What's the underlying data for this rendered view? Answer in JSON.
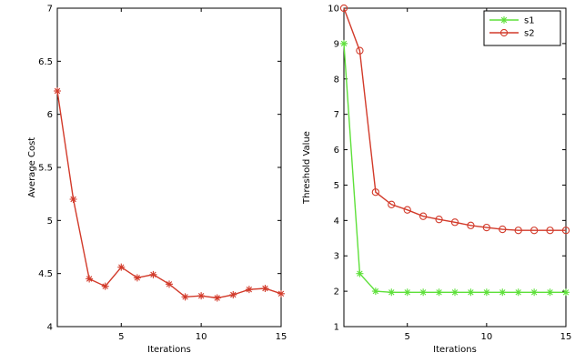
{
  "chart_data": [
    {
      "type": "line",
      "xlabel": "Iterations",
      "ylabel": "Average Cost",
      "xlim": [
        1,
        15
      ],
      "ylim": [
        4,
        7
      ],
      "xticks": [
        5,
        10,
        15
      ],
      "yticks": [
        4,
        4.5,
        5,
        5.5,
        6,
        6.5,
        7
      ],
      "ytick_labels": [
        "4",
        "4.5",
        "5",
        "5.5",
        "6",
        "6.5",
        "7"
      ],
      "grid": false,
      "series": [
        {
          "color": "#d23a2a",
          "marker": "star",
          "x": [
            1,
            2,
            3,
            4,
            5,
            6,
            7,
            8,
            9,
            10,
            11,
            12,
            13,
            14,
            15
          ],
          "y": [
            6.22,
            5.2,
            4.45,
            4.38,
            4.56,
            4.46,
            4.49,
            4.4,
            4.28,
            4.29,
            4.27,
            4.3,
            4.35,
            4.36,
            4.31
          ]
        }
      ]
    },
    {
      "type": "line",
      "xlabel": "Iterations",
      "ylabel": "Threshold Value",
      "xlim": [
        1,
        15
      ],
      "ylim": [
        1,
        10
      ],
      "xticks": [
        5,
        10,
        15
      ],
      "yticks": [
        1,
        2,
        3,
        4,
        5,
        6,
        7,
        8,
        9,
        10
      ],
      "ytick_labels": [
        "1",
        "2",
        "3",
        "4",
        "5",
        "6",
        "7",
        "8",
        "9",
        "10"
      ],
      "grid": false,
      "legend_position": "top-right",
      "series": [
        {
          "name": "s1",
          "color": "#5ee03a",
          "marker": "star",
          "x": [
            1,
            2,
            3,
            4,
            5,
            6,
            7,
            8,
            9,
            10,
            11,
            12,
            13,
            14,
            15
          ],
          "y": [
            9.0,
            2.5,
            2.0,
            1.97,
            1.97,
            1.97,
            1.97,
            1.97,
            1.97,
            1.97,
            1.97,
            1.97,
            1.97,
            1.97,
            1.97
          ]
        },
        {
          "name": "s2",
          "color": "#d23a2a",
          "marker": "circle",
          "x": [
            1,
            2,
            3,
            4,
            5,
            6,
            7,
            8,
            9,
            10,
            11,
            12,
            13,
            14,
            15
          ],
          "y": [
            10.0,
            8.8,
            4.8,
            4.45,
            4.3,
            4.12,
            4.03,
            3.95,
            3.86,
            3.8,
            3.75,
            3.72,
            3.72,
            3.72,
            3.72
          ]
        }
      ]
    }
  ]
}
